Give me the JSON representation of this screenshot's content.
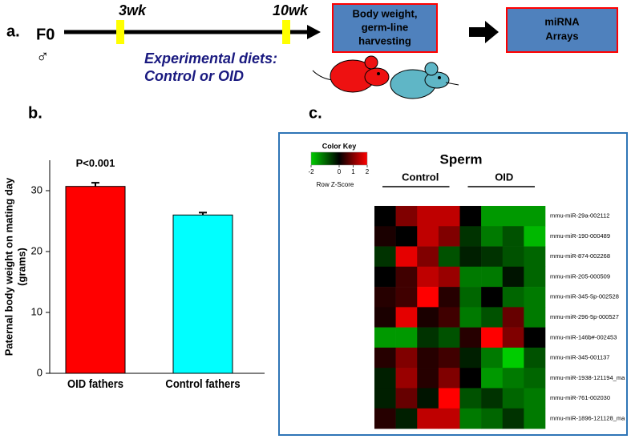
{
  "panel_a": {
    "label": "a.",
    "generation": "F0",
    "sex": "♂",
    "time_marks": [
      "3wk",
      "10wk"
    ],
    "diet_line1": "Experimental diets:",
    "diet_line2": "Control or OID",
    "step1_line1": "Body weight,",
    "step1_line2": "germ-line",
    "step1_line3": "harvesting",
    "step2_line1": "miRNA",
    "step2_line2": "Arrays"
  },
  "panel_b_label": "b.",
  "panel_c_label": "c.",
  "chart_data": [
    {
      "type": "bar",
      "ylabel_line1": "Paternal body weight on mating day",
      "ylabel_line2": "(grams)",
      "annotation": "P<0.001",
      "categories": [
        "OID fathers",
        "Control fathers"
      ],
      "series": [
        {
          "values": [
            30.7,
            26.0
          ],
          "errors": [
            0.6,
            0.4
          ],
          "colors": [
            "#ff0000",
            "#00ffff"
          ]
        }
      ],
      "ylim": [
        0,
        35
      ],
      "yticks": [
        0,
        10,
        20,
        30
      ]
    },
    {
      "type": "heatmap",
      "title": "Sperm",
      "column_groups": [
        "Control",
        "OID"
      ],
      "rows": [
        "mmu-miR-29a-002112",
        "mmu-miR-190-000489",
        "mmu-miR-874-002268",
        "mmu-miR-205-000509",
        "mmu-miR-345-5p-002528",
        "mmu-miR-296-5p-000527",
        "mmu-miR-146b#-002453",
        "mmu-miR-345-001137",
        "mmu-miR-1938-121194_ma",
        "mmu-miR-761-002030",
        "mmu-miR-1896-121128_ma"
      ],
      "values": [
        [
          0,
          1,
          1.5,
          1.5,
          0,
          -1.5,
          -1.5,
          -1.5
        ],
        [
          0.2,
          0,
          1.5,
          1,
          -0.5,
          -1.2,
          -0.8,
          -1.8
        ],
        [
          -0.5,
          1.8,
          1,
          -0.8,
          -0.3,
          -0.5,
          -0.8,
          -1
        ],
        [
          0,
          0.5,
          1.5,
          1.2,
          -1.2,
          -1.2,
          -0.2,
          -1
        ],
        [
          0.3,
          0.5,
          2,
          0.3,
          -1,
          0,
          -1,
          -1.2
        ],
        [
          0.2,
          1.8,
          0.2,
          0.5,
          -1.2,
          -0.8,
          0.8,
          -1.2
        ],
        [
          -1.5,
          -1.5,
          -0.5,
          -0.8,
          0.3,
          2,
          1,
          0
        ],
        [
          0.3,
          1,
          0.3,
          0.5,
          -0.3,
          -1.2,
          -2,
          -0.8
        ],
        [
          -0.3,
          1.2,
          0.3,
          1,
          0,
          -1.5,
          -1.2,
          -1
        ],
        [
          -0.3,
          0.8,
          -0.2,
          2,
          -0.8,
          -0.5,
          -1,
          -1.2
        ],
        [
          0.3,
          -0.3,
          1.5,
          1.5,
          -1.2,
          -1,
          -0.5,
          -1.2
        ]
      ],
      "zlim": [
        -2,
        2
      ],
      "colors": [
        "#00cc00",
        "#000000",
        "#ff0000"
      ],
      "color_key": {
        "title": "Color Key",
        "label": "Row Z-Score",
        "ticks": [
          -2,
          0,
          1,
          2
        ]
      }
    }
  ]
}
